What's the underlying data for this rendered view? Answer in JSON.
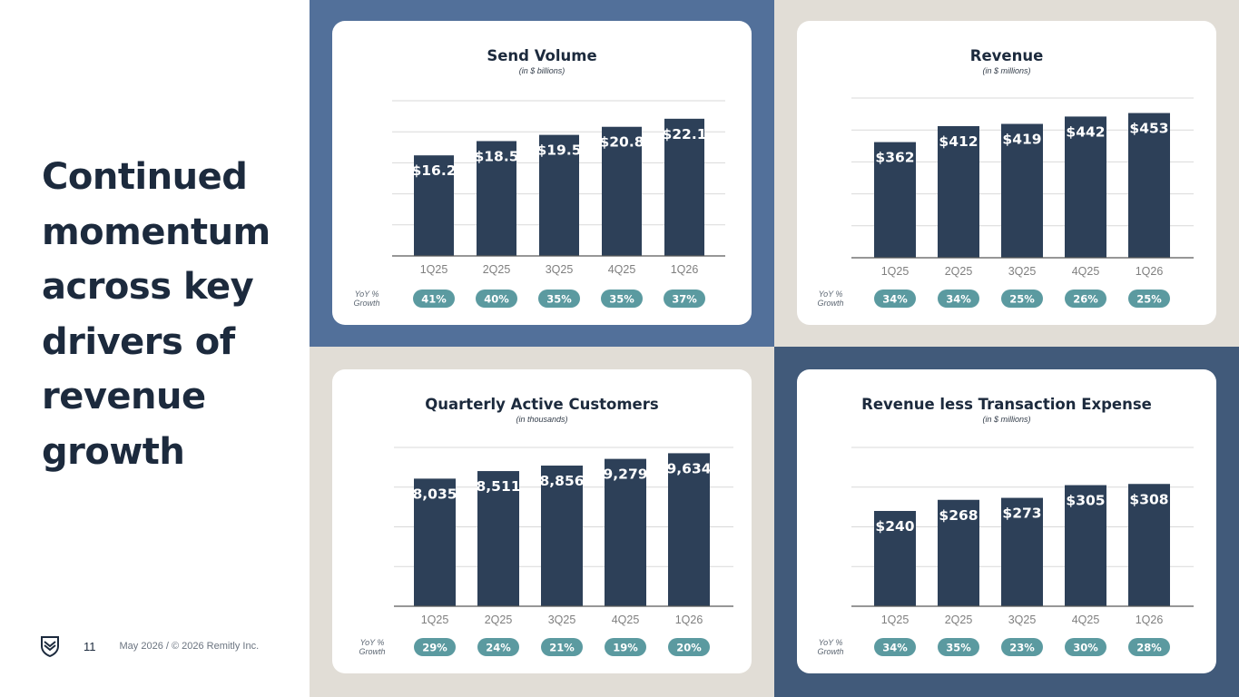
{
  "headline": [
    "Continued",
    "momentum",
    "across key",
    "drivers of",
    "revenue",
    "growth"
  ],
  "footer": {
    "page_number": "11",
    "copyright": "May 2026 / © 2026 Remitly Inc.",
    "logo_icon": "remitly-shield-icon"
  },
  "yoy_label": [
    "YoY %",
    "Growth"
  ],
  "colors": {
    "bar": "#2d4058",
    "pill": "#5b9aa0",
    "grid": "#d9d9d9",
    "axis": "#595959",
    "tick": "#7f7f7f"
  },
  "chart_data": [
    {
      "type": "bar",
      "title": "Send Volume",
      "subtitle": "(in $ billions)",
      "categories": [
        "1Q25",
        "2Q25",
        "3Q25",
        "4Q25",
        "1Q26"
      ],
      "values": [
        16.2,
        18.5,
        19.5,
        20.8,
        22.1
      ],
      "labels": [
        "$16.2",
        "$18.5",
        "$19.5",
        "$20.8",
        "$22.1"
      ],
      "ylim": [
        0,
        25
      ],
      "gridlines": 5,
      "growth": [
        "41%",
        "40%",
        "35%",
        "35%",
        "37%"
      ]
    },
    {
      "type": "bar",
      "title": "Revenue",
      "subtitle": "(in $ millions)",
      "categories": [
        "1Q25",
        "2Q25",
        "3Q25",
        "4Q25",
        "1Q26"
      ],
      "values": [
        362,
        412,
        419,
        442,
        453
      ],
      "labels": [
        "$362",
        "$412",
        "$419",
        "$442",
        "$453"
      ],
      "ylim": [
        0,
        500
      ],
      "gridlines": 5,
      "growth": [
        "34%",
        "34%",
        "25%",
        "26%",
        "25%"
      ]
    },
    {
      "type": "bar",
      "title": "Quarterly Active Customers",
      "subtitle": "(in thousands)",
      "categories": [
        "1Q25",
        "2Q25",
        "3Q25",
        "4Q25",
        "1Q26"
      ],
      "values": [
        8035,
        8511,
        8856,
        9279,
        9634
      ],
      "labels": [
        "8,035",
        "8,511",
        "8,856",
        "9,279",
        "9,634"
      ],
      "ylim": [
        0,
        10000
      ],
      "gridlines": 4,
      "growth": [
        "29%",
        "24%",
        "21%",
        "19%",
        "20%"
      ]
    },
    {
      "type": "bar",
      "title": "Revenue less Transaction Expense",
      "subtitle": "(in $ millions)",
      "categories": [
        "1Q25",
        "2Q25",
        "3Q25",
        "4Q25",
        "1Q26"
      ],
      "values": [
        240,
        268,
        273,
        305,
        308
      ],
      "labels": [
        "$240",
        "$268",
        "$273",
        "$305",
        "$308"
      ],
      "ylim": [
        0,
        400
      ],
      "gridlines": 4,
      "growth": [
        "34%",
        "35%",
        "23%",
        "30%",
        "28%"
      ]
    }
  ]
}
